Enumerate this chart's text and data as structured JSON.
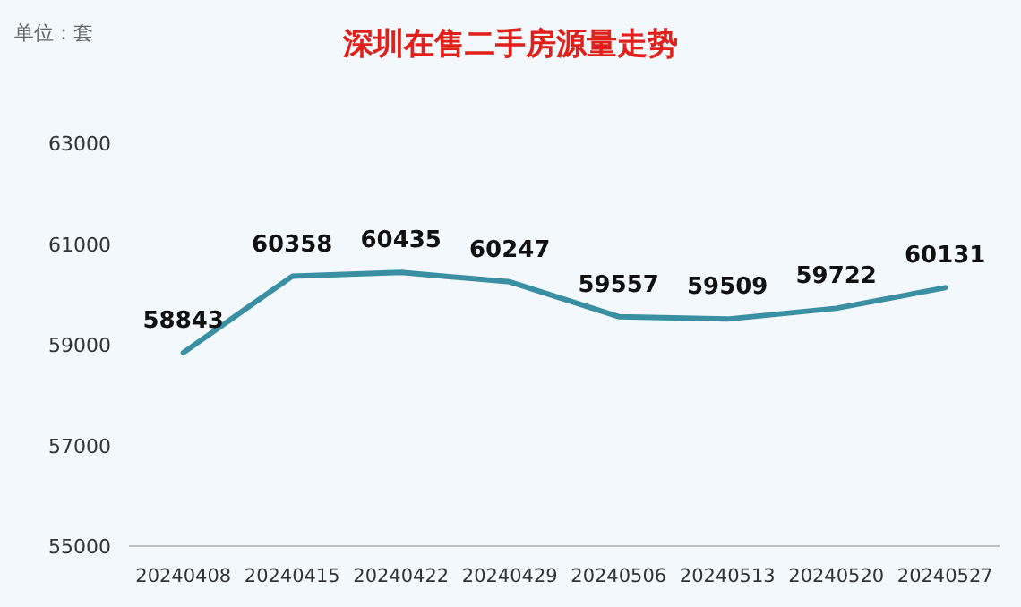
{
  "chart_data": {
    "type": "line",
    "title": "深圳在售二手房源量走势",
    "annotations": [
      "单位：套"
    ],
    "categories": [
      "20240408",
      "20240415",
      "20240422",
      "20240429",
      "20240506",
      "20240513",
      "20240520",
      "20240527"
    ],
    "values": [
      58843,
      60358,
      60435,
      60247,
      59557,
      59509,
      59722,
      60131
    ],
    "color": "#3a8fa3",
    "ylim": [
      55000,
      63000
    ],
    "yticks": [
      55000,
      57000,
      59000,
      61000,
      63000
    ],
    "data_labels": true,
    "grid": false
  }
}
